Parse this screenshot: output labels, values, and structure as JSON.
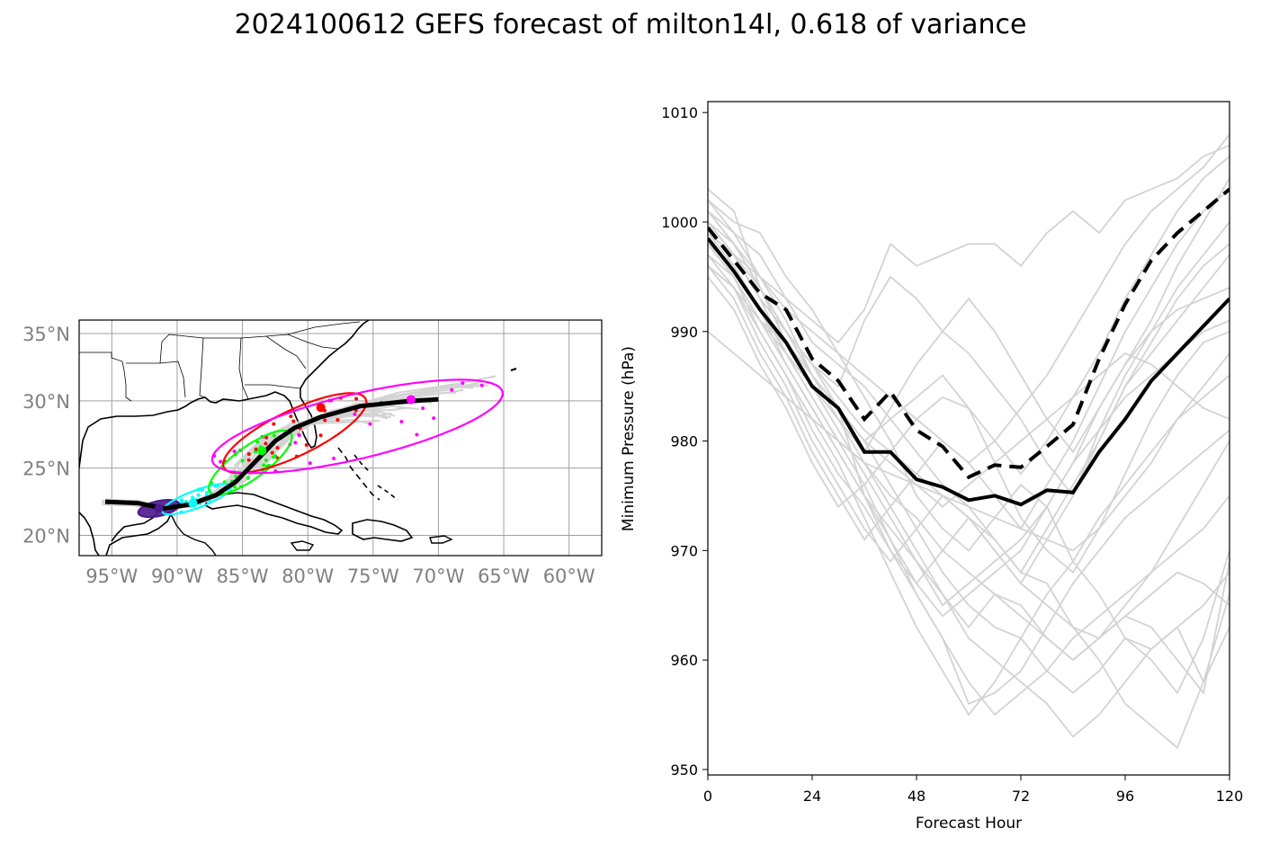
{
  "title": "2024100612 GEFS forecast of milton14l, 0.618 of variance",
  "chart_data": [
    {
      "type": "map",
      "lon_range": [
        -97.5,
        -57.5
      ],
      "lat_range": [
        18.5,
        36.0
      ],
      "grid": true,
      "xtick_labels": [
        "95°W",
        "90°W",
        "85°W",
        "80°W",
        "75°W",
        "70°W",
        "65°W",
        "60°W"
      ],
      "xtick_values": [
        -95,
        -90,
        -85,
        -80,
        -75,
        -70,
        -65,
        -60
      ],
      "ytick_labels": [
        "20°N",
        "25°N",
        "30°N",
        "35°N"
      ],
      "ytick_values": [
        20,
        25,
        30,
        35
      ],
      "mean_track": [
        [
          -95.5,
          22.5
        ],
        [
          -93,
          22.4
        ],
        [
          -91,
          22.0
        ],
        [
          -89,
          22.3
        ],
        [
          -87,
          23.0
        ],
        [
          -85.5,
          24.0
        ],
        [
          -84,
          25.5
        ],
        [
          -82.5,
          27.0
        ],
        [
          -81,
          28.0
        ],
        [
          -79,
          28.8
        ],
        [
          -76,
          29.6
        ],
        [
          -72,
          30.0
        ],
        [
          -70,
          30.1
        ]
      ],
      "ellipses": [
        {
          "color": "#4b1a8c",
          "cx": -91.4,
          "cy": 22.0,
          "rx": 1.6,
          "ry": 0.55,
          "angle": 12,
          "filled": true
        },
        {
          "color": "#00ffff",
          "cx": -88.5,
          "cy": 22.7,
          "rx": 2.8,
          "ry": 0.65,
          "angle": 20
        },
        {
          "color": "#00ff00",
          "cx": -84.4,
          "cy": 25.4,
          "rx": 3.8,
          "ry": 1.2,
          "angle": 35
        },
        {
          "color": "#ff0000",
          "cx": -81.0,
          "cy": 27.6,
          "rx": 6.0,
          "ry": 1.7,
          "angle": 25
        },
        {
          "color": "#ff00ff",
          "cx": -76.2,
          "cy": 28.1,
          "rx": 11.4,
          "ry": 2.4,
          "angle": 13
        }
      ],
      "mean_points": [
        {
          "color": "#4b1a8c",
          "lon": -91.4,
          "lat": 22.0
        },
        {
          "color": "#00ffff",
          "lon": -88.8,
          "lat": 22.4
        },
        {
          "color": "#00ff00",
          "lon": -83.5,
          "lat": 26.3
        },
        {
          "color": "#ff0000",
          "lon": -79.0,
          "lat": 29.5
        },
        {
          "color": "#ff00ff",
          "lon": -72.1,
          "lat": 30.1
        }
      ]
    },
    {
      "type": "line",
      "xlabel": "Forecast Hour",
      "ylabel": "Minimum Pressure (hPa)",
      "xlim": [
        0,
        120
      ],
      "ylim": [
        949.5,
        1011
      ],
      "xticks": [
        0,
        24,
        48,
        72,
        96,
        120
      ],
      "yticks": [
        950,
        960,
        970,
        980,
        990,
        1000,
        1010
      ],
      "x": [
        0,
        6,
        12,
        18,
        24,
        30,
        36,
        42,
        48,
        54,
        60,
        66,
        72,
        78,
        84,
        90,
        96,
        102,
        108,
        114,
        120
      ],
      "series": [
        {
          "style": "solid",
          "color": "#000000",
          "values": [
            998.5,
            995.5,
            992,
            989,
            985,
            983,
            979,
            979,
            976.5,
            975.8,
            974.6,
            975,
            974.2,
            975.5,
            975.3,
            979,
            982,
            985.5,
            988,
            990.5,
            993
          ]
        },
        {
          "style": "dashed",
          "color": "#000000",
          "values": [
            999.5,
            996.5,
            993.5,
            992,
            987.5,
            985.5,
            982,
            984.5,
            981,
            979.5,
            976.7,
            977.8,
            977.6,
            979.5,
            981.5,
            987.5,
            992.5,
            996.5,
            999,
            1001,
            1003
          ]
        },
        {
          "style": "member",
          "color": "#d3d3d3",
          "values": [
            1003,
            1001,
            994,
            990,
            987,
            983,
            975,
            972,
            969,
            966,
            963,
            966,
            965,
            962,
            960,
            962,
            964,
            963,
            960,
            957,
            969
          ]
        },
        {
          "style": "member",
          "color": "#d3d3d3",
          "values": [
            1002,
            1000,
            999,
            995,
            992,
            988,
            984,
            980,
            975,
            972,
            970,
            973,
            976,
            974,
            969,
            966,
            962,
            961,
            963,
            958,
            963
          ]
        },
        {
          "style": "member",
          "color": "#d3d3d3",
          "values": [
            1001,
            999,
            997,
            993,
            989,
            987,
            985,
            982,
            979,
            976,
            974,
            971,
            968,
            967,
            963,
            960,
            956,
            954,
            952,
            958,
            966
          ]
        },
        {
          "style": "member",
          "color": "#d3d3d3",
          "values": [
            1000,
            998,
            995,
            991,
            986,
            983,
            980,
            976,
            972,
            968,
            965,
            963,
            962,
            959,
            957,
            959,
            962,
            960,
            957,
            962,
            970
          ]
        },
        {
          "style": "member",
          "color": "#d3d3d3",
          "values": [
            999,
            997,
            993,
            990,
            986,
            982,
            978,
            974,
            970,
            966,
            962,
            960,
            958,
            956,
            953,
            955,
            958,
            961,
            963,
            965,
            968
          ]
        },
        {
          "style": "member",
          "color": "#d3d3d3",
          "values": [
            998,
            996,
            992,
            988,
            984,
            980,
            976,
            971,
            966,
            962,
            958,
            955,
            957,
            959,
            962,
            964,
            966,
            968,
            970,
            972,
            975
          ]
        },
        {
          "style": "member",
          "color": "#d3d3d3",
          "values": [
            997,
            995,
            991,
            987,
            983,
            979,
            975,
            970,
            966,
            962,
            956,
            957,
            959,
            963,
            967,
            970,
            973,
            975,
            977,
            979,
            981
          ]
        },
        {
          "style": "member",
          "color": "#d3d3d3",
          "values": [
            996,
            994,
            990,
            986,
            982,
            978,
            973,
            968,
            963,
            959,
            955,
            958,
            962,
            966,
            969,
            973,
            976,
            979,
            982,
            984,
            986
          ]
        },
        {
          "style": "member",
          "color": "#d3d3d3",
          "values": [
            1000,
            997,
            994,
            989,
            985,
            981,
            977,
            973,
            969,
            965,
            967,
            969,
            971,
            974,
            978,
            981,
            984,
            986,
            988,
            990,
            991
          ]
        },
        {
          "style": "member",
          "color": "#d3d3d3",
          "values": [
            999,
            996,
            992,
            987,
            983,
            979,
            975,
            971,
            967,
            964,
            966,
            968,
            970,
            974,
            978,
            983,
            987,
            990,
            992,
            993,
            994
          ]
        },
        {
          "style": "member",
          "color": "#d3d3d3",
          "values": [
            998,
            995,
            990,
            986,
            981,
            977,
            974,
            970,
            967,
            970,
            973,
            971,
            968,
            972,
            976,
            980,
            985,
            988,
            991,
            994,
            997
          ]
        },
        {
          "style": "member",
          "color": "#d3d3d3",
          "values": [
            997,
            994,
            989,
            985,
            980,
            976,
            972,
            969,
            972,
            975,
            973,
            970,
            967,
            971,
            975,
            981,
            986,
            990,
            994,
            997,
            1000
          ]
        },
        {
          "style": "member",
          "color": "#d3d3d3",
          "values": [
            996,
            993,
            988,
            984,
            979,
            975,
            971,
            974,
            977,
            980,
            978,
            975,
            972,
            976,
            980,
            985,
            990,
            994,
            998,
            1001,
            1003
          ]
        },
        {
          "style": "member",
          "color": "#d3d3d3",
          "values": [
            995,
            992,
            987,
            983,
            978,
            974,
            976,
            979,
            982,
            984,
            983,
            980,
            977,
            980,
            984,
            988,
            993,
            997,
            1001,
            1004,
            1006
          ]
        },
        {
          "style": "member",
          "color": "#d3d3d3",
          "values": [
            999,
            997,
            993,
            990,
            987,
            984,
            981,
            979,
            977,
            975,
            973,
            970,
            967,
            965,
            963,
            962,
            964,
            966,
            968,
            967,
            965
          ]
        },
        {
          "style": "member",
          "color": "#d3d3d3",
          "values": [
            1001,
            998,
            994,
            990,
            986,
            983,
            980,
            978,
            976,
            974,
            976,
            978,
            980,
            982,
            984,
            986,
            988,
            987,
            985,
            983,
            982
          ]
        },
        {
          "style": "member",
          "color": "#d3d3d3",
          "values": [
            998,
            995,
            991,
            988,
            985,
            982,
            979,
            983,
            987,
            990,
            993,
            990,
            986,
            982,
            979,
            983,
            987,
            991,
            996,
            1000,
            1004
          ]
        },
        {
          "style": "member",
          "color": "#d3d3d3",
          "values": [
            1002,
            999,
            995,
            992,
            990,
            988,
            986,
            984,
            982,
            980,
            978,
            980,
            983,
            986,
            990,
            994,
            998,
            1001,
            1003,
            1005,
            1008
          ]
        },
        {
          "style": "member",
          "color": "#d3d3d3",
          "values": [
            1000,
            997,
            993,
            988,
            984,
            980,
            978,
            975,
            973,
            970,
            968,
            966,
            964,
            962,
            960,
            962,
            965,
            968,
            972,
            976,
            980
          ]
        },
        {
          "style": "member",
          "color": "#d3d3d3",
          "values": [
            990,
            988,
            986,
            984,
            982,
            980,
            978,
            977,
            976,
            975,
            974,
            973,
            972,
            971,
            970,
            972,
            975,
            978,
            982,
            985,
            988
          ]
        },
        {
          "style": "member",
          "color": "#d3d3d3",
          "values": [
            996,
            994,
            991,
            989,
            986,
            983,
            980,
            982,
            984,
            986,
            983,
            978,
            973,
            970,
            968,
            972,
            977,
            982,
            986,
            989,
            990
          ]
        },
        {
          "style": "member",
          "color": "#d3d3d3",
          "values": [
            1001,
            998,
            994,
            990,
            987,
            985,
            991,
            995,
            993,
            990,
            988,
            985,
            982,
            978,
            975,
            980,
            985,
            989,
            993,
            996,
            998
          ]
        },
        {
          "style": "member",
          "color": "#d3d3d3",
          "values": [
            999,
            997,
            995,
            993,
            991,
            989,
            992,
            998,
            996,
            997,
            998,
            998,
            996,
            999,
            1001,
            999,
            1002,
            1003,
            1004,
            1006,
            1007
          ]
        }
      ]
    }
  ]
}
